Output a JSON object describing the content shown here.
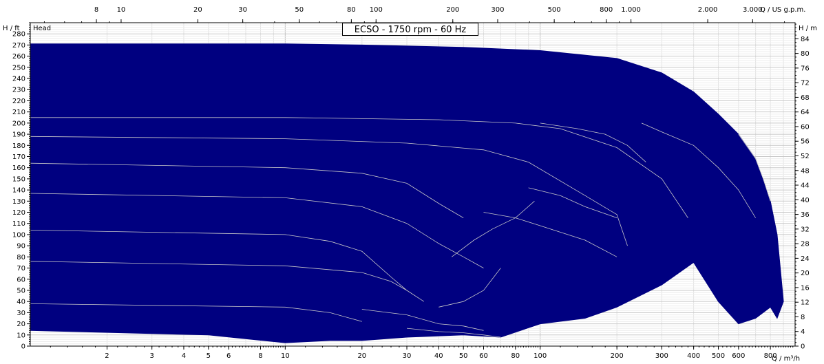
{
  "chart_data": {
    "type": "area",
    "title": "ECSO - 1750 rpm - 60 Hz",
    "y_series_label": "Head",
    "x_axis_bottom": {
      "unit_label": "Q / m³/h",
      "scale": "log",
      "range": [
        1,
        1000
      ],
      "ticks": [
        2,
        3,
        4,
        5,
        6,
        8,
        10,
        20,
        30,
        40,
        50,
        60,
        80,
        100,
        200,
        300,
        400,
        500,
        600,
        800
      ],
      "tick_labels": [
        "2",
        "3",
        "4",
        "5",
        "6",
        "8",
        "10",
        "20",
        "30",
        "40",
        "50",
        "60",
        "80",
        "100",
        "200",
        "300",
        "400",
        "500",
        "600",
        "800"
      ]
    },
    "x_axis_top": {
      "unit_label": "Q / US g.p.m.",
      "scale": "log",
      "ticks": [
        8,
        10,
        20,
        30,
        50,
        80,
        100,
        200,
        300,
        500,
        800,
        1000,
        2000,
        3000
      ],
      "tick_labels": [
        "8",
        "10",
        "20",
        "30",
        "50",
        "80",
        "100",
        "200",
        "300",
        "500",
        "800",
        "1.000",
        "2.000",
        "3.000"
      ]
    },
    "y_axis_left": {
      "unit_label": "H / ft",
      "range": [
        0,
        290
      ],
      "ticks": [
        0,
        10,
        20,
        30,
        40,
        50,
        60,
        70,
        80,
        90,
        100,
        110,
        120,
        130,
        140,
        150,
        160,
        170,
        180,
        190,
        200,
        210,
        220,
        230,
        240,
        250,
        260,
        270,
        280
      ],
      "tick_labels": [
        "0",
        "10",
        "20",
        "30",
        "40",
        "50",
        "60",
        "70",
        "80",
        "90",
        "100",
        "110",
        "120",
        "130",
        "140",
        "150",
        "160",
        "170",
        "180",
        "190",
        "200",
        "210",
        "220",
        "230",
        "240",
        "250",
        "260",
        "270",
        "280"
      ]
    },
    "y_axis_right": {
      "unit_label": "H / m",
      "ticks": [
        0,
        4,
        8,
        12,
        16,
        20,
        24,
        28,
        32,
        36,
        40,
        44,
        48,
        52,
        56,
        60,
        64,
        68,
        72,
        76,
        80,
        84
      ],
      "tick_labels": [
        "0",
        "4",
        "8",
        "12",
        "16",
        "20",
        "24",
        "28",
        "32",
        "36",
        "40",
        "44",
        "48",
        "52",
        "56",
        "60",
        "64",
        "68",
        "72",
        "76",
        "80",
        "84"
      ]
    },
    "grid": true,
    "fill_color": "#000080",
    "line_color": "#c8c8c8",
    "envelope": [
      [
        1,
        271
      ],
      [
        10,
        271
      ],
      [
        20,
        270
      ],
      [
        50,
        268
      ],
      [
        100,
        265
      ],
      [
        200,
        258
      ],
      [
        300,
        245
      ],
      [
        400,
        228
      ],
      [
        500,
        208
      ],
      [
        600,
        190
      ],
      [
        700,
        168
      ],
      [
        800,
        130
      ],
      [
        850,
        100
      ],
      [
        900,
        40
      ],
      [
        850,
        25
      ],
      [
        800,
        35
      ],
      [
        700,
        25
      ],
      [
        600,
        20
      ],
      [
        500,
        40
      ],
      [
        400,
        75
      ],
      [
        300,
        55
      ],
      [
        200,
        35
      ],
      [
        150,
        25
      ],
      [
        100,
        20
      ],
      [
        70,
        8
      ],
      [
        50,
        10
      ],
      [
        30,
        8
      ],
      [
        20,
        5
      ],
      [
        15,
        5
      ],
      [
        10,
        3
      ],
      [
        5,
        10
      ],
      [
        1,
        14
      ]
    ],
    "series": [
      {
        "values": [
          [
            1,
            205
          ],
          [
            10,
            205
          ],
          [
            40,
            203
          ],
          [
            80,
            200
          ],
          [
            120,
            195
          ],
          [
            200,
            178
          ],
          [
            300,
            150
          ],
          [
            380,
            115
          ]
        ]
      },
      {
        "values": [
          [
            1,
            188
          ],
          [
            10,
            186
          ],
          [
            30,
            182
          ],
          [
            60,
            176
          ],
          [
            90,
            165
          ],
          [
            150,
            135
          ],
          [
            200,
            118
          ],
          [
            220,
            90
          ]
        ]
      },
      {
        "values": [
          [
            1,
            164
          ],
          [
            10,
            160
          ],
          [
            20,
            155
          ],
          [
            30,
            146
          ],
          [
            40,
            128
          ],
          [
            50,
            115
          ]
        ]
      },
      {
        "values": [
          [
            1,
            137
          ],
          [
            10,
            133
          ],
          [
            20,
            125
          ],
          [
            30,
            110
          ],
          [
            40,
            92
          ],
          [
            50,
            80
          ],
          [
            60,
            70
          ]
        ]
      },
      {
        "values": [
          [
            1,
            104
          ],
          [
            10,
            100
          ],
          [
            15,
            94
          ],
          [
            20,
            85
          ],
          [
            26,
            62
          ],
          [
            30,
            50
          ],
          [
            35,
            40
          ]
        ]
      },
      {
        "values": [
          [
            1,
            76
          ],
          [
            10,
            72
          ],
          [
            20,
            66
          ],
          [
            26,
            58
          ],
          [
            30,
            50
          ]
        ]
      },
      {
        "values": [
          [
            1,
            38
          ],
          [
            10,
            35
          ],
          [
            15,
            30
          ],
          [
            20,
            22
          ]
        ]
      },
      {
        "values": [
          [
            20,
            33
          ],
          [
            30,
            28
          ],
          [
            40,
            20
          ],
          [
            50,
            18
          ],
          [
            60,
            14
          ]
        ]
      },
      {
        "values": [
          [
            30,
            16
          ],
          [
            40,
            13
          ],
          [
            50,
            12
          ],
          [
            60,
            10
          ],
          [
            70,
            8
          ]
        ]
      },
      {
        "values": [
          [
            40,
            35
          ],
          [
            50,
            40
          ],
          [
            60,
            50
          ],
          [
            70,
            70
          ]
        ]
      },
      {
        "values": [
          [
            45,
            80
          ],
          [
            55,
            95
          ],
          [
            65,
            105
          ],
          [
            80,
            115
          ],
          [
            95,
            130
          ]
        ]
      },
      {
        "values": [
          [
            60,
            120
          ],
          [
            80,
            115
          ],
          [
            100,
            108
          ],
          [
            150,
            95
          ],
          [
            200,
            80
          ]
        ]
      },
      {
        "values": [
          [
            90,
            142
          ],
          [
            120,
            135
          ],
          [
            150,
            125
          ],
          [
            200,
            115
          ]
        ]
      },
      {
        "values": [
          [
            100,
            200
          ],
          [
            140,
            195
          ],
          [
            180,
            190
          ],
          [
            220,
            180
          ],
          [
            260,
            165
          ]
        ]
      },
      {
        "values": [
          [
            250,
            200
          ],
          [
            300,
            192
          ],
          [
            400,
            180
          ],
          [
            500,
            160
          ],
          [
            600,
            140
          ],
          [
            700,
            115
          ]
        ]
      },
      {
        "values": [
          [
            600,
            190
          ],
          [
            700,
            168
          ],
          [
            750,
            150
          ],
          [
            800,
            130
          ]
        ]
      }
    ]
  }
}
